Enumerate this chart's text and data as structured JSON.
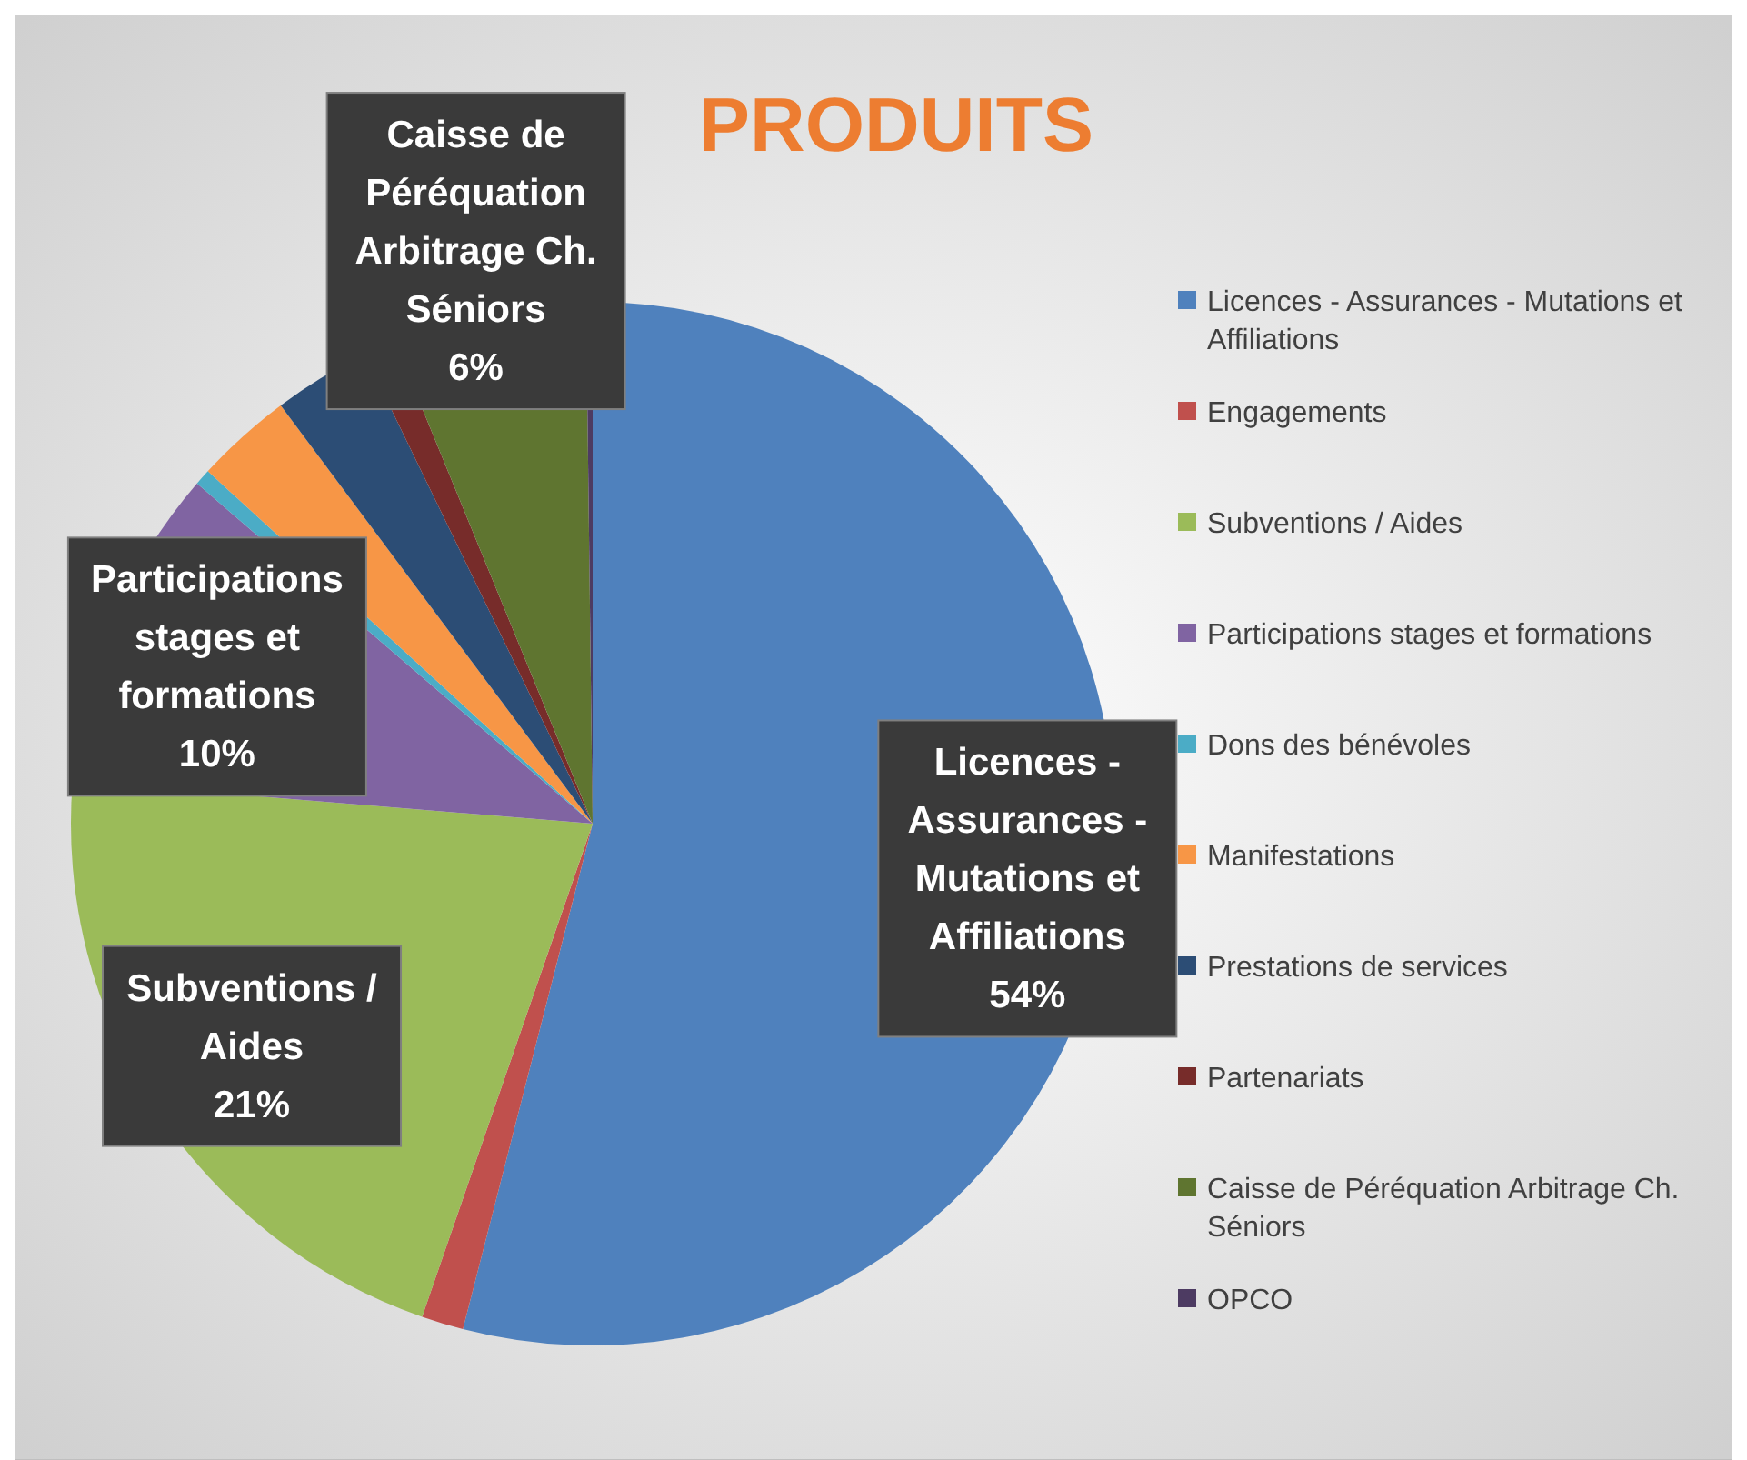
{
  "chart_data": {
    "type": "pie",
    "title": "PRODUITS",
    "categories": [
      "Licences - Assurances - Mutations et Affiliations",
      "Engagements",
      "Subventions / Aides",
      "Participations stages et formations",
      "Dons des bénévoles",
      "Manifestations",
      "Prestations de services",
      "Partenariats",
      "Caisse de Péréquation Arbitrage Ch. Séniors",
      "OPCO"
    ],
    "values": [
      54,
      1.3,
      21,
      10,
      0.5,
      3,
      3,
      1,
      6,
      0.2
    ],
    "colors": [
      "#4f81bd",
      "#c0504d",
      "#9bbb59",
      "#8064a2",
      "#4bacc6",
      "#f79646",
      "#2c4d75",
      "#772c2a",
      "#5f7530",
      "#4d3b62"
    ],
    "value_labels": [
      "54%",
      null,
      "21%",
      "10%",
      null,
      null,
      null,
      null,
      "6%",
      null
    ],
    "legend": "right"
  }
}
